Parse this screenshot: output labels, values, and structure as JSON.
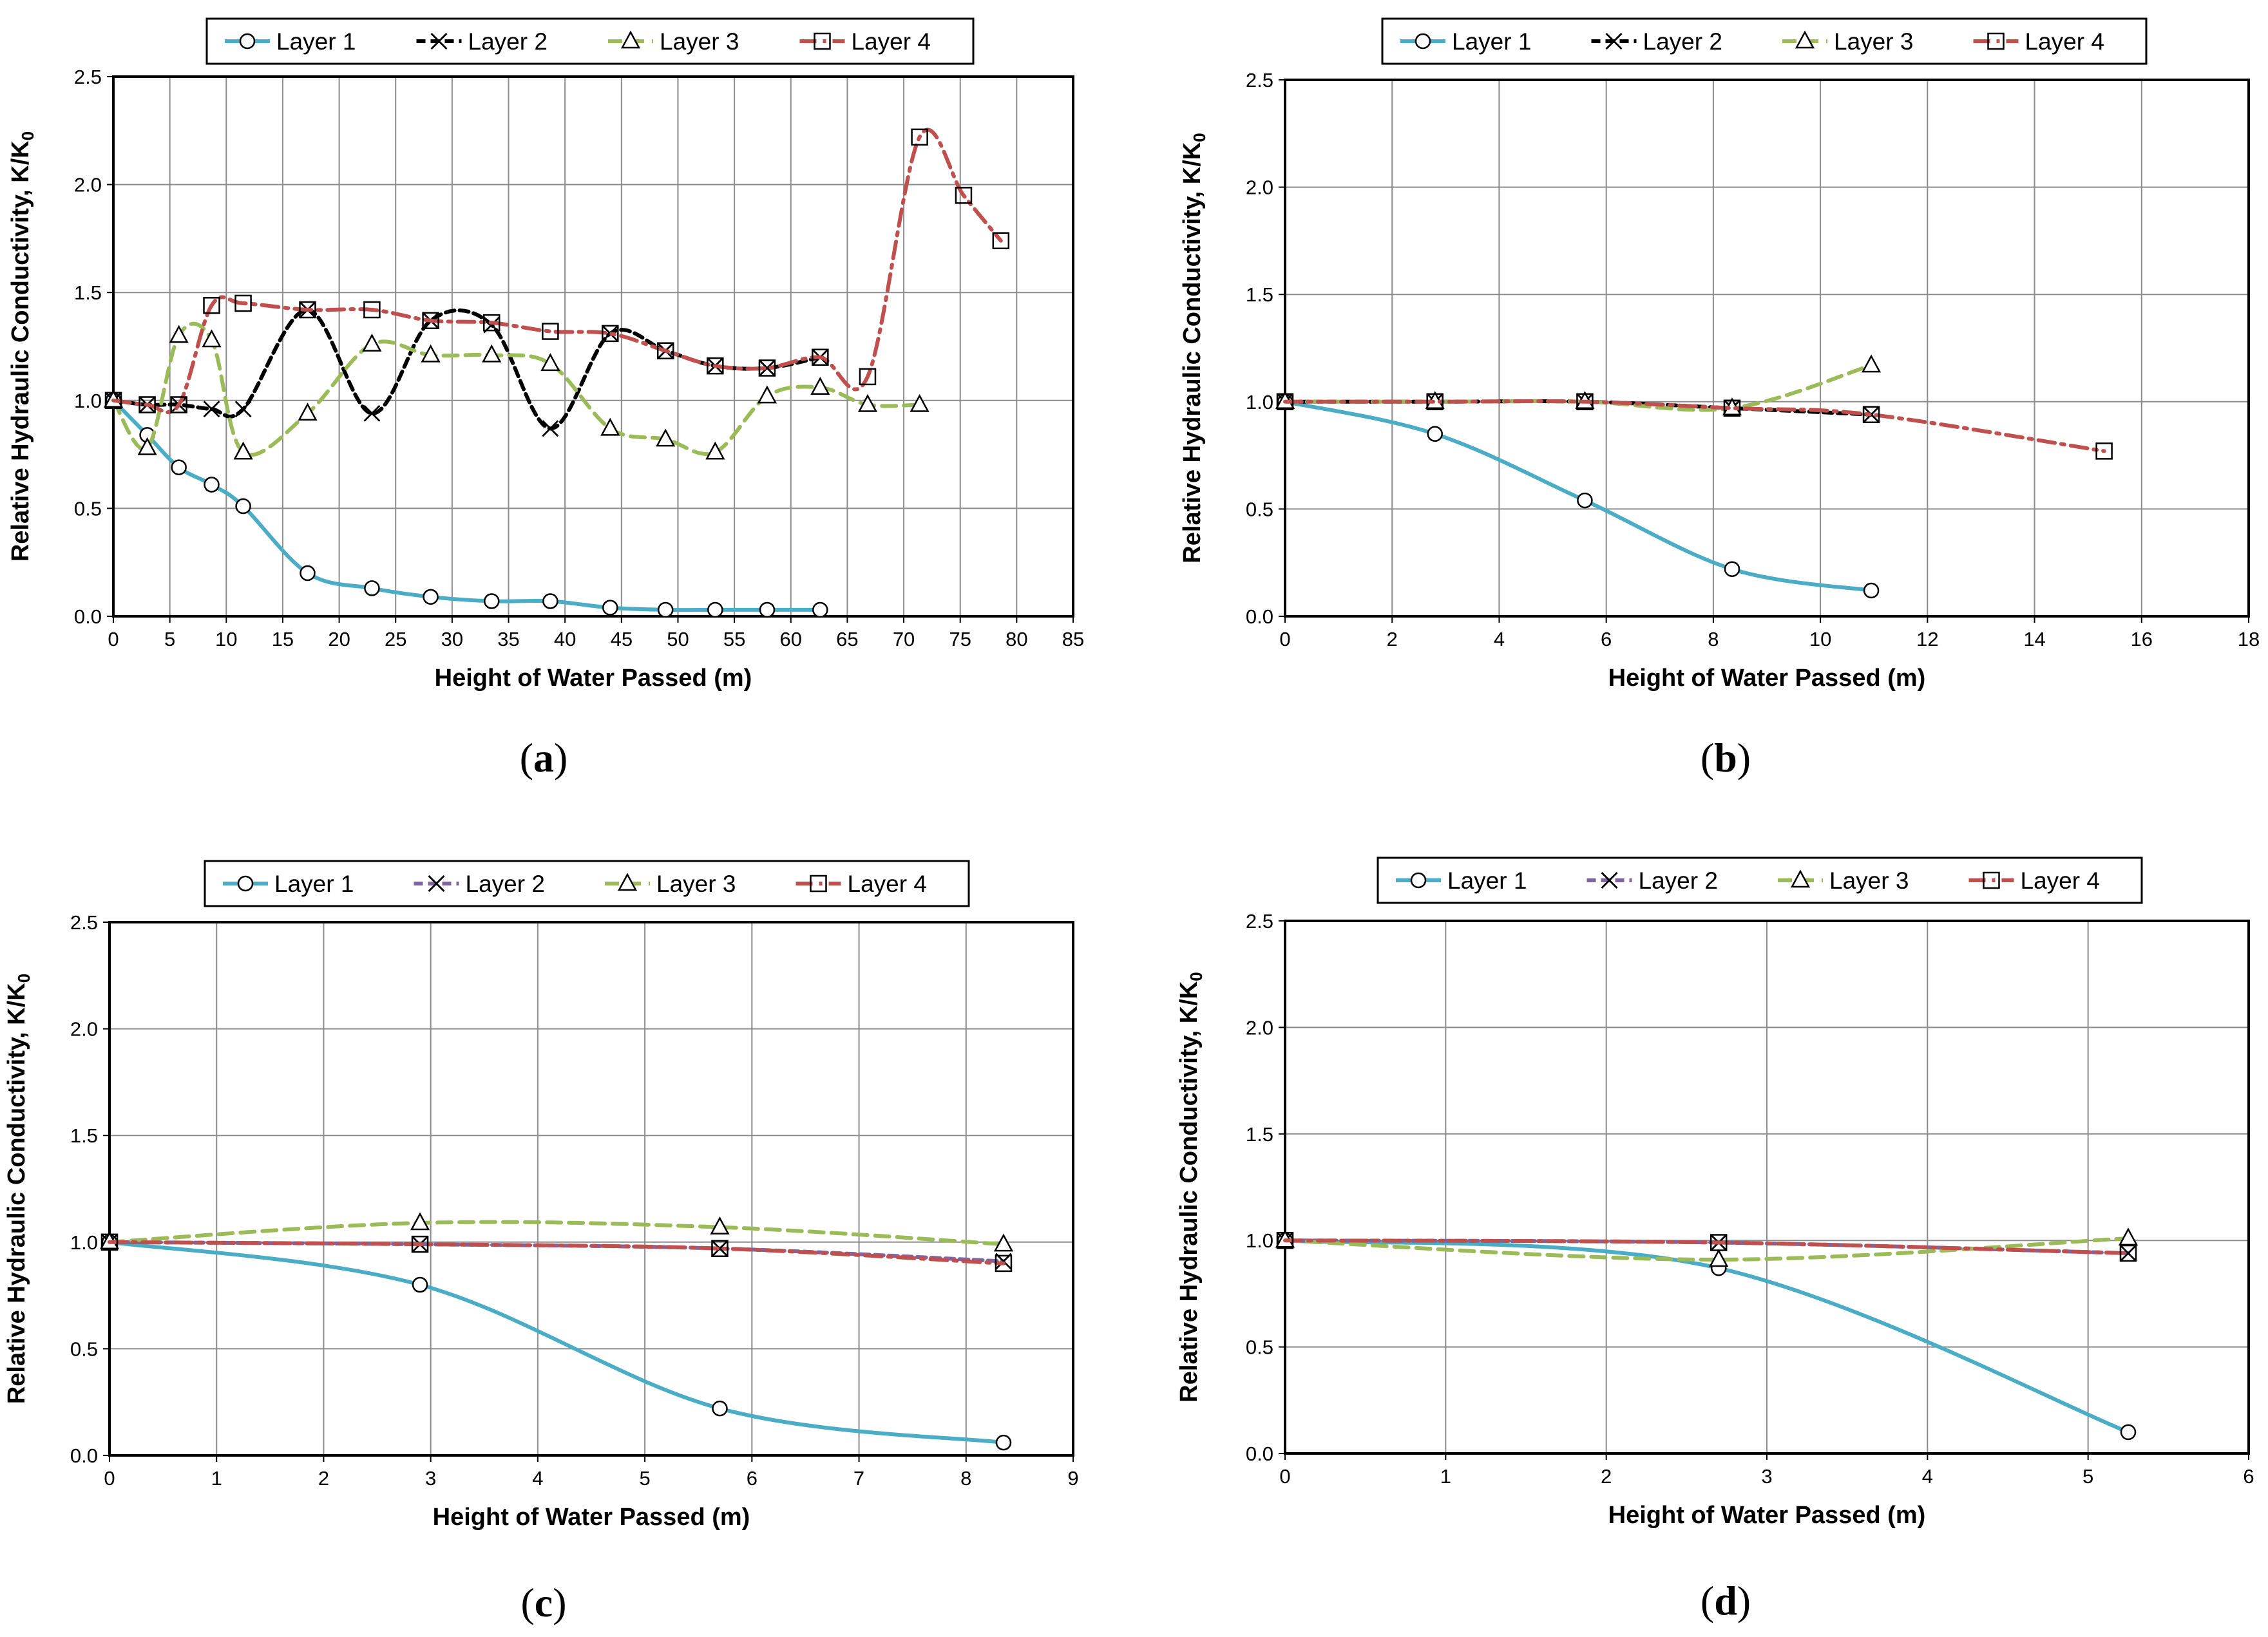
{
  "styles": {
    "colors": {
      "Layer 1": "#4bacc6",
      "Layer 2a": "#000000",
      "Layer 2": "#8064a2",
      "Layer 3": "#9bbb59",
      "Layer 4": "#c0504d"
    },
    "dashes": {
      "Layer 1": "",
      "Layer 2": "14,8",
      "Layer 3": "22,12",
      "Layer 4": "26,10,5,10"
    },
    "markers": {
      "Layer 1": "circle",
      "Layer 2": "x",
      "Layer 3": "triangle",
      "Layer 4": "square"
    }
  },
  "chart_data": [
    {
      "id": "a",
      "type": "line",
      "caption": "a",
      "xlabel": "Height of Water Passed (m)",
      "ylabel": "Relative  Hydraulic Conductivity, K/K",
      "ylabel_sub": "0",
      "xlim": [
        0,
        85
      ],
      "xticks": [
        0,
        5,
        10,
        15,
        20,
        25,
        30,
        35,
        40,
        45,
        50,
        55,
        60,
        65,
        70,
        75,
        80,
        85
      ],
      "ylim": [
        0,
        2.5
      ],
      "yticks": [
        "0.0",
        "0.5",
        "1.0",
        "1.5",
        "2.0",
        "2.5"
      ],
      "legend_labels": [
        "Layer 1",
        "Layer 2",
        "Layer 3",
        "Layer 4"
      ],
      "layer2_color": "#000000",
      "series": [
        {
          "name": "Layer 1",
          "x": [
            0,
            3,
            5.8,
            8.7,
            11.5,
            17.2,
            22.9,
            28.1,
            33.5,
            38.7,
            44,
            48.9,
            53.3,
            57.9,
            62.6
          ],
          "y": [
            1.0,
            0.84,
            0.69,
            0.61,
            0.51,
            0.2,
            0.13,
            0.09,
            0.07,
            0.07,
            0.04,
            0.03,
            0.03,
            0.03,
            0.03
          ]
        },
        {
          "name": "Layer 2",
          "x": [
            0,
            3,
            5.8,
            8.7,
            11.5,
            17.2,
            22.9,
            28.1,
            33.5,
            38.7,
            44,
            48.9,
            53.3,
            57.9,
            62.6
          ],
          "y": [
            1.0,
            0.98,
            0.98,
            0.96,
            0.96,
            1.42,
            0.94,
            1.37,
            1.35,
            0.87,
            1.31,
            1.23,
            1.16,
            1.15,
            1.2
          ]
        },
        {
          "name": "Layer 3",
          "x": [
            0,
            3,
            5.8,
            8.7,
            11.5,
            17.2,
            22.9,
            28.1,
            33.5,
            38.7,
            44,
            48.9,
            53.3,
            57.9,
            62.6,
            66.8,
            71.4
          ],
          "y": [
            1.0,
            0.78,
            1.3,
            1.28,
            0.76,
            0.94,
            1.26,
            1.21,
            1.21,
            1.17,
            0.87,
            0.82,
            0.76,
            1.02,
            1.06,
            0.98,
            0.98
          ]
        },
        {
          "name": "Layer 4",
          "x": [
            0,
            3,
            5.8,
            8.7,
            11.5,
            17.2,
            22.9,
            28.1,
            33.5,
            38.7,
            44,
            48.9,
            53.3,
            57.9,
            62.6,
            66.8,
            71.4,
            75.3,
            78.6
          ],
          "y": [
            1.0,
            0.98,
            0.98,
            1.44,
            1.45,
            1.42,
            1.42,
            1.37,
            1.36,
            1.32,
            1.31,
            1.23,
            1.16,
            1.15,
            1.2,
            1.11,
            2.22,
            1.95,
            1.74
          ]
        }
      ]
    },
    {
      "id": "b",
      "type": "line",
      "caption": "b",
      "xlabel": "Height of Water Passed (m)",
      "ylabel": "Relative  Hydraulic Conductivity, K/K",
      "ylabel_sub": "0",
      "xlim": [
        0,
        18
      ],
      "xticks": [
        0,
        2,
        4,
        6,
        8,
        10,
        12,
        14,
        16,
        18
      ],
      "ylim": [
        0,
        2.5
      ],
      "yticks": [
        "0.0",
        "0.5",
        "1.0",
        "1.5",
        "2.0",
        "2.5"
      ],
      "legend_labels": [
        "Layer 1",
        "Layer 2",
        "Layer 3",
        "Layer 4"
      ],
      "layer2_color": "#000000",
      "series": [
        {
          "name": "Layer 1",
          "x": [
            0,
            2.8,
            5.6,
            8.35,
            10.95
          ],
          "y": [
            1.0,
            0.85,
            0.54,
            0.22,
            0.12
          ]
        },
        {
          "name": "Layer 2",
          "x": [
            0,
            2.8,
            5.6,
            8.35,
            10.95
          ],
          "y": [
            1.0,
            1.0,
            1.0,
            0.97,
            0.94
          ]
        },
        {
          "name": "Layer 3",
          "x": [
            0,
            2.8,
            5.6,
            8.35,
            10.95
          ],
          "y": [
            1.0,
            1.0,
            1.0,
            0.97,
            1.17
          ]
        },
        {
          "name": "Layer 4",
          "x": [
            0,
            2.8,
            5.6,
            8.35,
            10.95,
            15.3
          ],
          "y": [
            1.0,
            1.0,
            1.0,
            0.97,
            0.94,
            0.77
          ]
        }
      ]
    },
    {
      "id": "c",
      "type": "line",
      "caption": "c",
      "xlabel": "Height of Water Passed (m)",
      "ylabel": "Relative  Hydraulic Conductivity, K/K",
      "ylabel_sub": "0",
      "xlim": [
        0,
        9
      ],
      "xticks": [
        0,
        1,
        2,
        3,
        4,
        5,
        6,
        7,
        8,
        9
      ],
      "ylim": [
        0,
        2.5
      ],
      "yticks": [
        "0.0",
        "0.5",
        "1.0",
        "1.5",
        "2.0",
        "2.5"
      ],
      "legend_labels": [
        "Layer 1",
        "Layer 2",
        "Layer 3",
        "Layer 4"
      ],
      "layer2_color": "#8064a2",
      "series": [
        {
          "name": "Layer 1",
          "x": [
            0,
            2.9,
            5.7,
            8.35
          ],
          "y": [
            1.0,
            0.8,
            0.22,
            0.06
          ]
        },
        {
          "name": "Layer 2",
          "x": [
            0,
            2.9,
            5.7,
            8.35
          ],
          "y": [
            1.0,
            0.99,
            0.97,
            0.91
          ]
        },
        {
          "name": "Layer 3",
          "x": [
            0,
            2.9,
            5.7,
            8.35
          ],
          "y": [
            1.0,
            1.09,
            1.07,
            0.99
          ]
        },
        {
          "name": "Layer 4",
          "x": [
            0,
            2.9,
            5.7,
            8.35
          ],
          "y": [
            1.0,
            0.99,
            0.97,
            0.9
          ]
        }
      ]
    },
    {
      "id": "d",
      "type": "line",
      "caption": "d",
      "xlabel": "Height of Water Passed (m)",
      "ylabel": "Relative  Hydraulic Conductivity, K/K",
      "ylabel_sub": "0",
      "xlim": [
        0,
        6
      ],
      "xticks": [
        0,
        1,
        2,
        3,
        4,
        5,
        6
      ],
      "ylim": [
        0,
        2.5
      ],
      "yticks": [
        "0.0",
        "0.5",
        "1.0",
        "1.5",
        "2.0",
        "2.5"
      ],
      "legend_labels": [
        "Layer 1",
        "Layer 2",
        "Layer 3",
        "Layer 4"
      ],
      "layer2_color": "#8064a2",
      "series": [
        {
          "name": "Layer 1",
          "x": [
            0,
            2.7,
            5.25
          ],
          "y": [
            1.0,
            0.87,
            0.1
          ]
        },
        {
          "name": "Layer 2",
          "x": [
            0,
            2.7,
            5.25
          ],
          "y": [
            1.0,
            0.99,
            0.94
          ]
        },
        {
          "name": "Layer 3",
          "x": [
            0,
            2.7,
            5.25
          ],
          "y": [
            1.0,
            0.91,
            1.01
          ]
        },
        {
          "name": "Layer 4",
          "x": [
            0,
            2.7,
            5.25
          ],
          "y": [
            1.0,
            0.99,
            0.94
          ]
        }
      ]
    }
  ]
}
